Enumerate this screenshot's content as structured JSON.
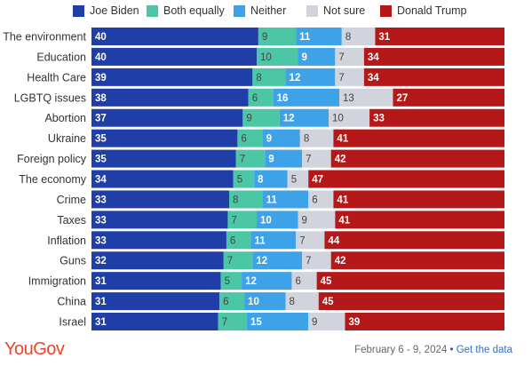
{
  "colors": {
    "biden": "#1f3ea8",
    "both": "#4bc7a6",
    "neither": "#3da2e8",
    "not_sure": "#d1d4dc",
    "trump": "#b41818"
  },
  "legend": [
    {
      "label": "Joe Biden",
      "color": "#1f3ea8"
    },
    {
      "label": "Both equally",
      "color": "#4bc7a6"
    },
    {
      "label": "Neither",
      "color": "#3da2e8"
    },
    {
      "label": "Not sure",
      "color": "#d1d4dc"
    },
    {
      "label": "Donald Trump",
      "color": "#b41818"
    }
  ],
  "chart_data": {
    "type": "bar",
    "orientation": "horizontal",
    "stacked": true,
    "legend_position": "top",
    "categories": [
      "The environment",
      "Education",
      "Health Care",
      "LGBTQ issues",
      "Abortion",
      "Ukraine",
      "Foreign policy",
      "The economy",
      "Crime",
      "Taxes",
      "Inflation",
      "Guns",
      "Immigration",
      "China",
      "Israel"
    ],
    "series": [
      {
        "name": "Joe Biden",
        "color": "#1f3ea8",
        "values": [
          40,
          40,
          39,
          38,
          37,
          35,
          35,
          34,
          33,
          33,
          33,
          32,
          31,
          31,
          31
        ]
      },
      {
        "name": "Both equally",
        "color": "#4bc7a6",
        "values": [
          9,
          10,
          8,
          6,
          9,
          6,
          7,
          5,
          8,
          7,
          6,
          7,
          5,
          6,
          7
        ]
      },
      {
        "name": "Neither",
        "color": "#3da2e8",
        "values": [
          11,
          9,
          12,
          16,
          12,
          9,
          9,
          8,
          11,
          10,
          11,
          12,
          12,
          10,
          15
        ]
      },
      {
        "name": "Not sure",
        "color": "#d1d4dc",
        "values": [
          8,
          7,
          7,
          13,
          10,
          8,
          7,
          5,
          6,
          9,
          7,
          7,
          6,
          8,
          9
        ]
      },
      {
        "name": "Donald Trump",
        "color": "#b41818",
        "values": [
          31,
          34,
          34,
          27,
          33,
          41,
          42,
          47,
          41,
          41,
          44,
          42,
          45,
          45,
          39
        ]
      }
    ],
    "xlim": [
      0,
      100
    ]
  },
  "footer": {
    "logo": "YouGov",
    "date": "February 6 - 9, 2024",
    "separator": "•",
    "link": "Get the data"
  }
}
